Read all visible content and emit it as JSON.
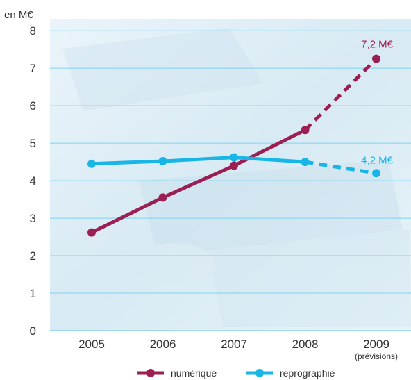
{
  "chart_data": {
    "type": "line",
    "unit_label": "en M€",
    "categories": [
      "2005",
      "2006",
      "2007",
      "2008",
      "2009"
    ],
    "category_note": "(prévisions)",
    "y_ticks": [
      "0",
      "1",
      "2",
      "3",
      "4",
      "5",
      "6",
      "7",
      "8"
    ],
    "ylim": [
      0,
      8.3
    ],
    "grid": true,
    "legend_position": "bottom",
    "series": [
      {
        "name": "numérique",
        "color": "#9b1f52",
        "values": [
          2.62,
          3.55,
          4.4,
          5.35,
          7.25
        ],
        "forecast_from_index": 3,
        "end_label": "7,2 M€"
      },
      {
        "name": "reprographie",
        "color": "#17b6e6",
        "values": [
          4.45,
          4.52,
          4.62,
          4.5,
          4.2
        ],
        "forecast_from_index": 3,
        "end_label": "4,2 M€"
      }
    ]
  }
}
